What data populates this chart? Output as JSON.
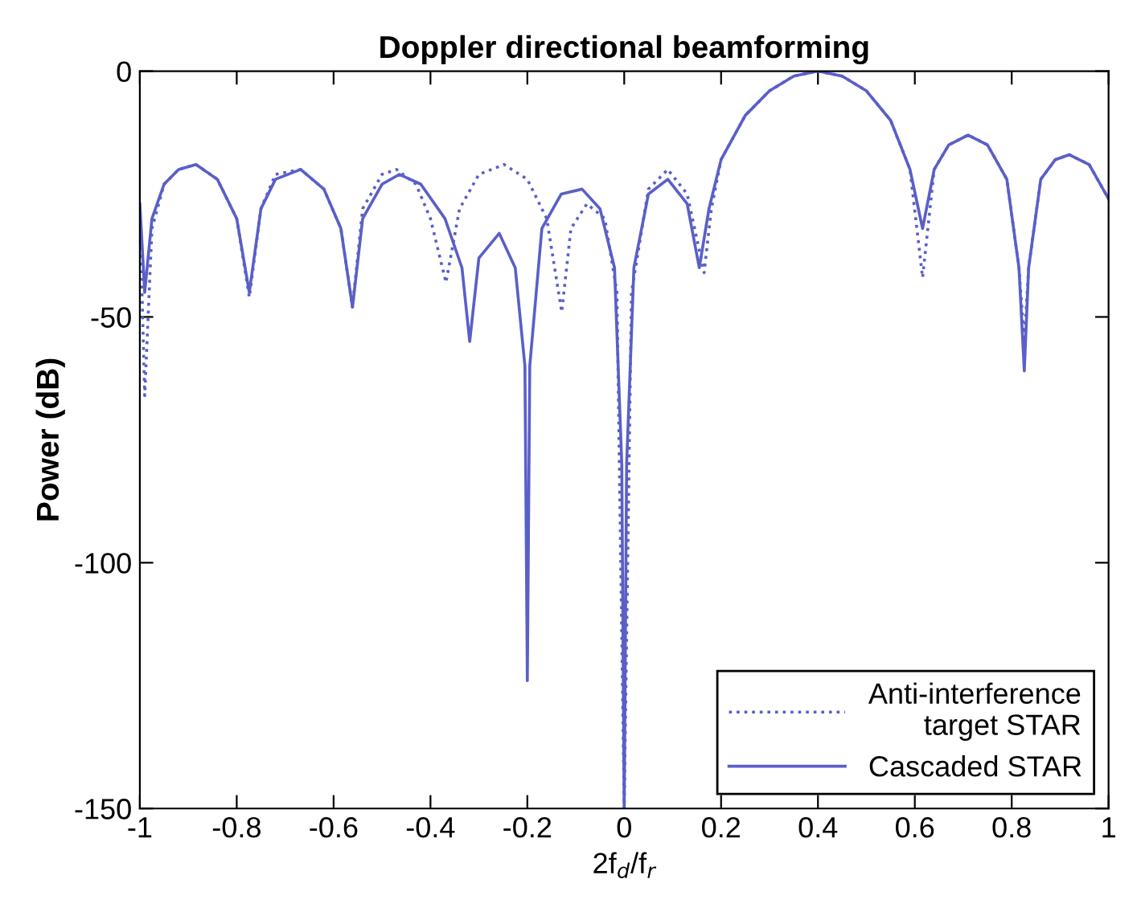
{
  "chart_data": {
    "type": "line",
    "title": "Doppler directional beamforming",
    "xlabel": "2f$_{d}$/f$_{r}$",
    "ylabel": "Power (dB)",
    "xlim": [
      -1,
      1
    ],
    "xticks": [
      -1,
      -0.8,
      -0.6,
      -0.4,
      -0.2,
      0,
      0.2,
      0.4,
      0.6,
      0.8,
      1
    ],
    "ylim": [
      -150,
      0
    ],
    "yticks": [
      -150,
      -100,
      -50,
      0
    ],
    "grid": false,
    "legend": "bottom right",
    "marker": "none",
    "series": [
      {
        "name": "Anti-interference\ntarget STAR",
        "color": "#5a5fc8",
        "line_style": "dotted",
        "x": [
          -1,
          -0.99,
          -0.975,
          -0.95,
          -0.92,
          -0.884,
          -0.84,
          -0.8,
          -0.774,
          -0.75,
          -0.72,
          -0.668,
          -0.62,
          -0.585,
          -0.561,
          -0.54,
          -0.5,
          -0.47,
          -0.43,
          -0.4,
          -0.368,
          -0.34,
          -0.3,
          -0.248,
          -0.2,
          -0.16,
          -0.129,
          -0.11,
          -0.077,
          -0.04,
          -0.015,
          0,
          0.015,
          0.05,
          0.09,
          0.13,
          0.165,
          0.18,
          0.2,
          0.25,
          0.3,
          0.35,
          0.4,
          0.45,
          0.5,
          0.55,
          0.59,
          0.616,
          0.64,
          0.67,
          0.71,
          0.75,
          0.79,
          0.815,
          0.826,
          0.835,
          0.86,
          0.89,
          0.919,
          0.96,
          1
        ],
        "values": [
          -28,
          -66,
          -32,
          -23,
          -20,
          -19,
          -22,
          -30,
          -46,
          -28,
          -21,
          -20,
          -24,
          -32,
          -48,
          -28,
          -21,
          -20,
          -23,
          -30,
          -43,
          -28,
          -21,
          -19,
          -22,
          -30,
          -49,
          -32,
          -27,
          -30,
          -45,
          -150,
          -45,
          -24,
          -20,
          -25,
          -41,
          -28,
          -18,
          -9,
          -4,
          -1,
          0,
          -1,
          -4,
          -10,
          -20,
          -42,
          -20,
          -15,
          -13,
          -15,
          -22,
          -40,
          -55,
          -40,
          -22,
          -18,
          -17,
          -19,
          -26
        ]
      },
      {
        "name": "Cascaded STAR",
        "color": "#5a5fc8",
        "line_style": "solid",
        "x": [
          -1,
          -0.99,
          -0.975,
          -0.95,
          -0.92,
          -0.884,
          -0.84,
          -0.8,
          -0.774,
          -0.75,
          -0.72,
          -0.668,
          -0.62,
          -0.585,
          -0.561,
          -0.54,
          -0.5,
          -0.464,
          -0.42,
          -0.37,
          -0.335,
          -0.319,
          -0.3,
          -0.258,
          -0.225,
          -0.205,
          -0.2,
          -0.195,
          -0.17,
          -0.13,
          -0.087,
          -0.05,
          -0.02,
          -0.005,
          0,
          0.005,
          0.02,
          0.05,
          0.09,
          0.13,
          0.155,
          0.175,
          0.2,
          0.25,
          0.3,
          0.35,
          0.4,
          0.45,
          0.5,
          0.55,
          0.59,
          0.616,
          0.64,
          0.67,
          0.71,
          0.75,
          0.79,
          0.815,
          0.826,
          0.835,
          0.86,
          0.89,
          0.919,
          0.96,
          1
        ],
        "values": [
          -27,
          -45,
          -30,
          -23,
          -20,
          -19,
          -22,
          -30,
          -45,
          -28,
          -22,
          -20,
          -24,
          -32,
          -48,
          -30,
          -23,
          -21,
          -23,
          -30,
          -40,
          -55,
          -38,
          -33,
          -40,
          -60,
          -124,
          -60,
          -32,
          -25,
          -24,
          -28,
          -40,
          -80,
          -150,
          -80,
          -40,
          -25,
          -22,
          -27,
          -40,
          -28,
          -18,
          -9,
          -4,
          -1,
          0,
          -1,
          -4,
          -10,
          -20,
          -32,
          -20,
          -15,
          -13,
          -15,
          -22,
          -40,
          -61,
          -40,
          -22,
          -18,
          -17,
          -19,
          -26
        ]
      }
    ]
  }
}
